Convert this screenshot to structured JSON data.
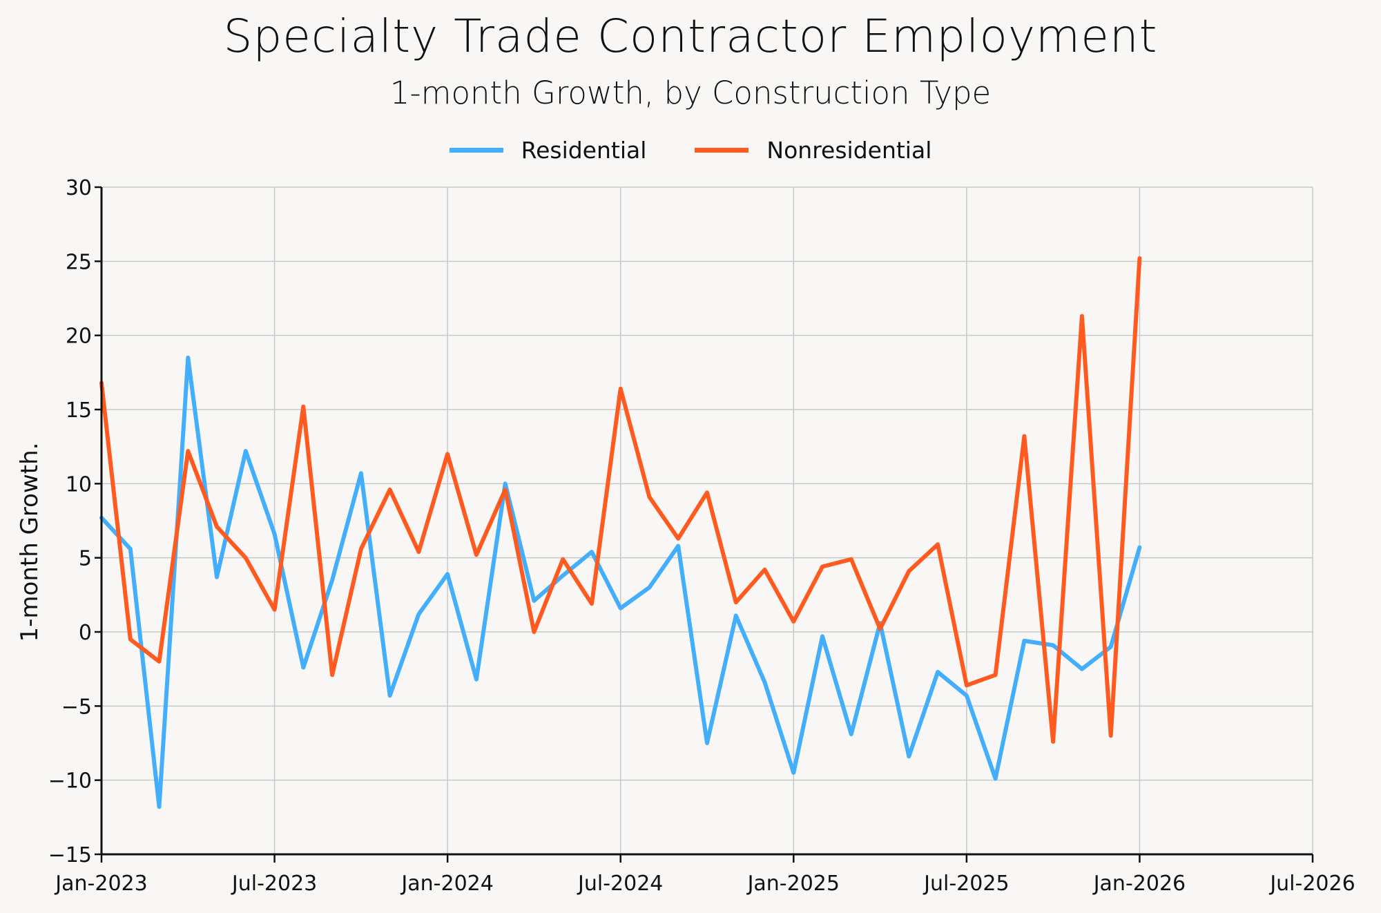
{
  "chart_data": {
    "type": "line",
    "title": "Specialty Trade Contractor Employment",
    "subtitle": "1-month Growth, by Construction Type",
    "xlabel": "",
    "ylabel": "1-month Growth.",
    "ylim": [
      -15,
      30
    ],
    "yticks": [
      -15,
      -10,
      -5,
      0,
      5,
      10,
      15,
      20,
      25,
      30
    ],
    "ytick_labels": [
      "−15",
      "−10",
      "−5",
      "0",
      "5",
      "10",
      "15",
      "20",
      "25",
      "30"
    ],
    "xlim_months": [
      0,
      42
    ],
    "xticks": [
      {
        "label": "Jan-2023",
        "month_index": 0
      },
      {
        "label": "Jul-2023",
        "month_index": 6
      },
      {
        "label": "Jan-2024",
        "month_index": 12
      },
      {
        "label": "Jul-2024",
        "month_index": 18
      },
      {
        "label": "Jan-2025",
        "month_index": 24
      },
      {
        "label": "Jul-2025",
        "month_index": 30
      },
      {
        "label": "Jan-2026",
        "month_index": 36
      },
      {
        "label": "Jul-2026",
        "month_index": 42
      }
    ],
    "x": [
      "2023-01",
      "2023-02",
      "2023-03",
      "2023-04",
      "2023-05",
      "2023-06",
      "2023-07",
      "2023-08",
      "2023-09",
      "2023-10",
      "2023-11",
      "2023-12",
      "2024-01",
      "2024-02",
      "2024-03",
      "2024-04",
      "2024-05",
      "2024-06",
      "2024-07",
      "2024-08",
      "2024-09",
      "2024-10",
      "2024-11",
      "2024-12",
      "2025-01",
      "2025-02",
      "2025-03",
      "2025-04",
      "2025-05",
      "2025-06",
      "2025-07",
      "2025-08",
      "2025-09",
      "2025-10",
      "2025-11",
      "2025-12",
      "2026-01"
    ],
    "grid": true,
    "legend_position": "top-center",
    "series": [
      {
        "name": "Residential",
        "color": "#42aefc",
        "values": [
          7.7,
          5.6,
          -11.8,
          18.5,
          3.7,
          12.2,
          6.6,
          -2.4,
          3.5,
          10.7,
          -4.3,
          1.2,
          3.9,
          -3.2,
          10.0,
          2.1,
          3.8,
          5.4,
          1.6,
          3.0,
          5.8,
          -7.5,
          1.1,
          -3.4,
          -9.5,
          -0.3,
          -6.9,
          0.6,
          -8.4,
          -2.7,
          -4.3,
          -9.9,
          -0.6,
          -0.9,
          -2.5,
          -1.0,
          5.7
        ]
      },
      {
        "name": "Nonresidential",
        "color": "#ff5a1f",
        "values": [
          16.8,
          -0.5,
          -2.0,
          12.2,
          7.1,
          5.0,
          1.5,
          15.2,
          -2.9,
          5.6,
          9.6,
          5.4,
          12.0,
          5.2,
          9.6,
          0.0,
          4.9,
          1.9,
          16.4,
          9.1,
          6.3,
          9.4,
          2.0,
          4.2,
          0.7,
          4.4,
          4.9,
          0.2,
          4.1,
          5.9,
          -3.6,
          -2.9,
          13.2,
          -7.4,
          21.3,
          -7.0,
          25.2
        ]
      }
    ]
  },
  "colors": {
    "background": "#f8f7f5",
    "grid": "#c8c8c8",
    "axis": "#111111"
  }
}
